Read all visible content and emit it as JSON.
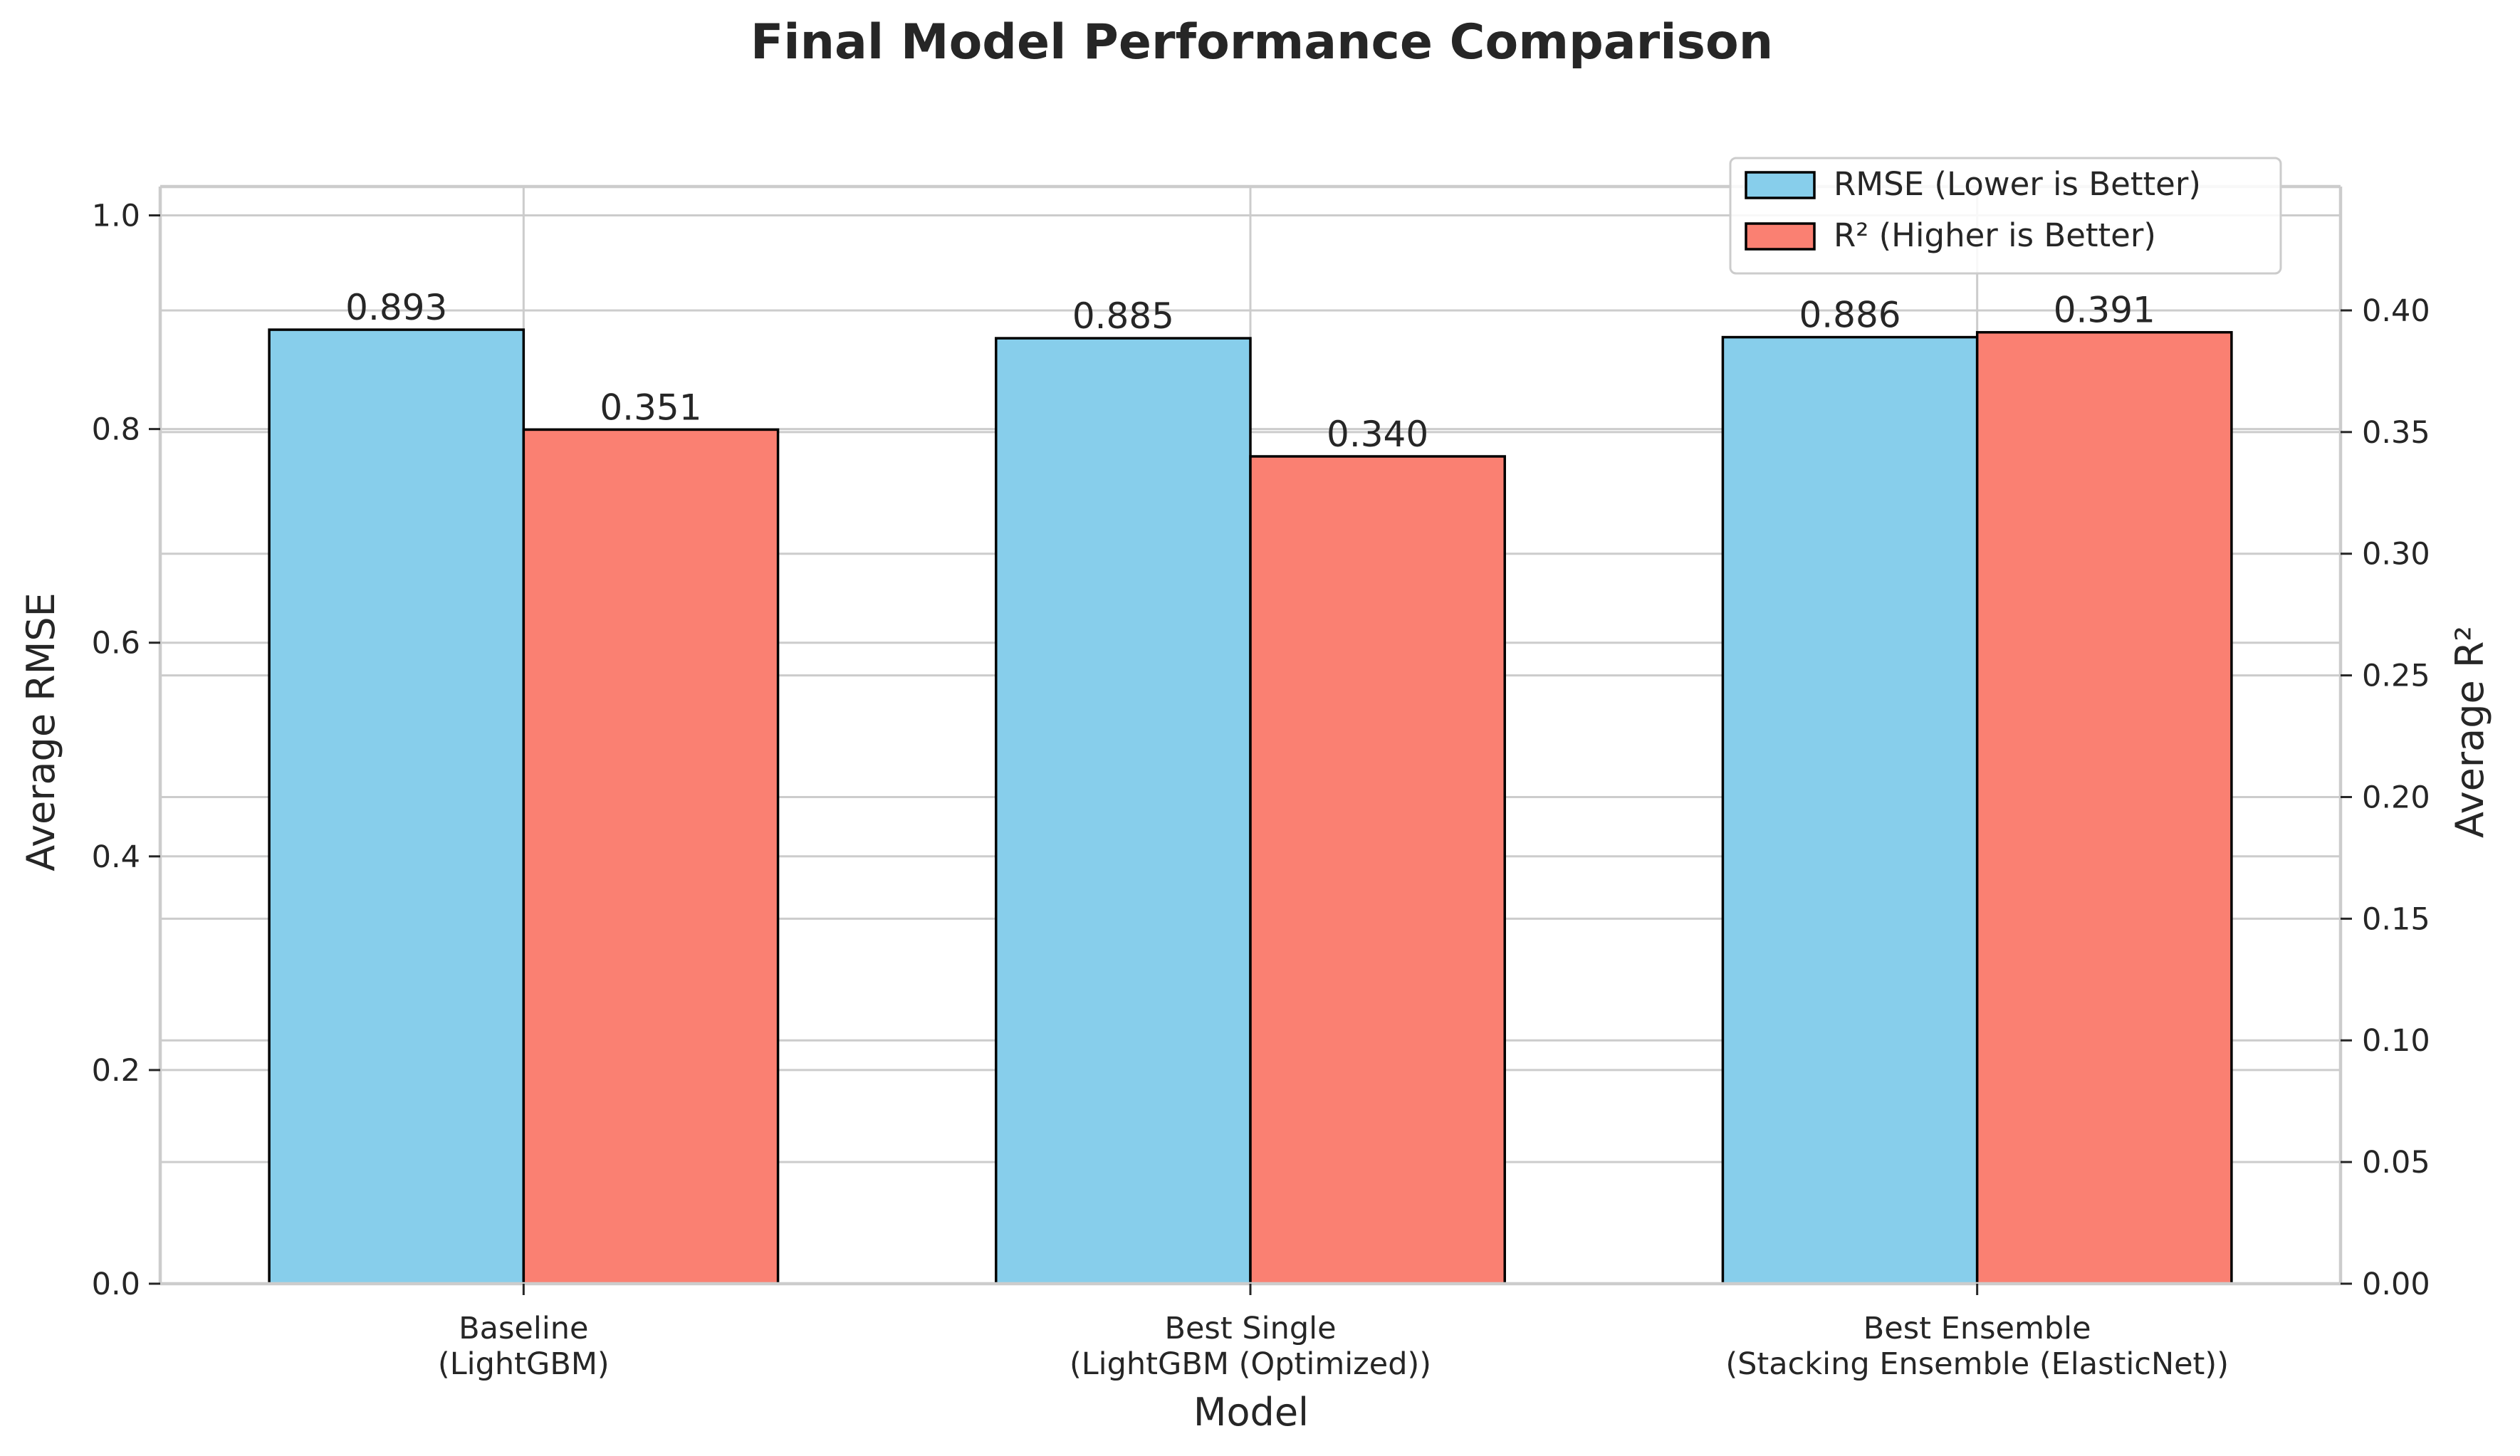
{
  "chart_data": {
    "type": "bar",
    "title": "Final Model Performance Comparison",
    "xlabel": "Model",
    "ylabel_left": "Average RMSE",
    "ylabel_right": "Average R²",
    "categories": [
      [
        "Baseline",
        "(LightGBM)"
      ],
      [
        "Best Single",
        "(LightGBM (Optimized))"
      ],
      [
        "Best Ensemble",
        "(Stacking Ensemble (ElasticNet))"
      ]
    ],
    "series": [
      {
        "name": "RMSE (Lower is Better)",
        "axis": "left",
        "color": "#87CEEB",
        "values": [
          0.893,
          0.885,
          0.886
        ],
        "labels": [
          "0.893",
          "0.885",
          "0.886"
        ]
      },
      {
        "name": "R² (Higher is Better)",
        "axis": "right",
        "color": "#FA8072",
        "values": [
          0.351,
          0.34,
          0.391
        ],
        "labels": [
          "0.351",
          "0.340",
          "0.391"
        ]
      }
    ],
    "ylim_left": [
      0,
      1.027
    ],
    "yticks_left": [
      "0.0",
      "0.2",
      "0.4",
      "0.6",
      "0.8",
      "1.0"
    ],
    "ylim_right": [
      0,
      0.4509
    ],
    "yticks_right": [
      "0.00",
      "0.05",
      "0.10",
      "0.15",
      "0.20",
      "0.25",
      "0.30",
      "0.35",
      "0.40"
    ],
    "grid": true,
    "legend_position": "upper right"
  }
}
